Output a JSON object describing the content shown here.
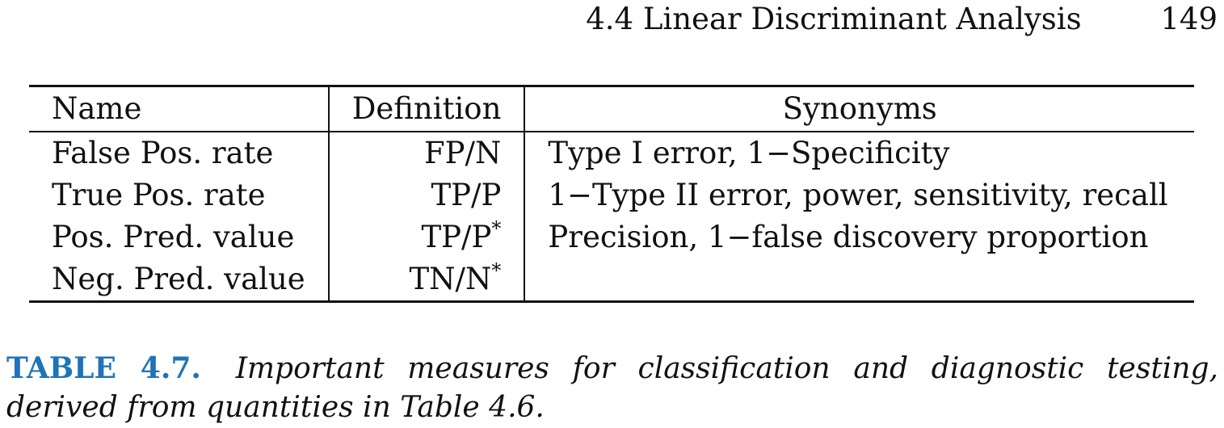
{
  "header": {
    "section_title": "4.4 Linear Discriminant Analysis",
    "page_number": "149"
  },
  "table": {
    "columns": [
      "Name",
      "Definition",
      "Synonyms"
    ],
    "rows": [
      {
        "name": "False Pos. rate",
        "definition": "FP/N",
        "definition_star": "",
        "synonyms": "Type I error, 1−Specificity"
      },
      {
        "name": "True Pos. rate",
        "definition": "TP/P",
        "definition_star": "",
        "synonyms": "1−Type II error, power, sensitivity, recall"
      },
      {
        "name": "Pos. Pred. value",
        "definition": "TP/P",
        "definition_star": "*",
        "synonyms": "Precision, 1−false discovery proportion"
      },
      {
        "name": "Neg. Pred. value",
        "definition": "TN/N",
        "definition_star": "*",
        "synonyms": ""
      }
    ]
  },
  "caption": {
    "label": "TABLE 4.7.",
    "text": "Important measures for classification and diagnostic testing, derived from quantities in Table 4.6."
  },
  "colors": {
    "caption_label": "#1f73b7",
    "text": "#111111"
  }
}
